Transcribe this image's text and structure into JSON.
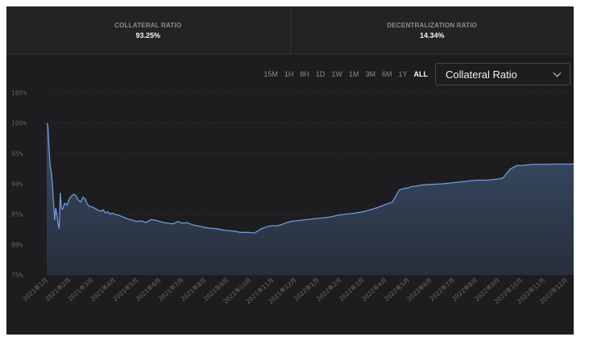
{
  "stats": [
    {
      "label": "COLLATERAL RATIO",
      "value": "93.25%"
    },
    {
      "label": "DECENTRALIZATION RATIO",
      "value": "14.34%"
    }
  ],
  "ranges": [
    "15M",
    "1H",
    "8H",
    "1D",
    "1W",
    "1M",
    "3M",
    "6M",
    "1Y",
    "ALL"
  ],
  "active_range": "ALL",
  "metric_select": {
    "value": "Collateral Ratio",
    "icon": "chevron-down-icon"
  },
  "colors": {
    "line": "#6b9be0",
    "background": "#1d1d1f",
    "area_top": "#3d5270"
  },
  "chart_data": {
    "type": "area",
    "yticks": [
      "75%",
      "80%",
      "85%",
      "90%",
      "95%",
      "100%",
      "105%"
    ],
    "ylim": [
      75,
      105
    ],
    "grid": true,
    "categories": [
      "2021年1月",
      "2021年2月",
      "2021年3月",
      "2021年4月",
      "2021年5月",
      "2021年6月",
      "2021年7月",
      "2021年8月",
      "2021年9月",
      "2021年10月",
      "2021年11月",
      "2021年12月",
      "2022年1月",
      "2022年2月",
      "2022年3月",
      "2022年4月",
      "2022年5月",
      "2022年6月",
      "2022年7月",
      "2022年8月",
      "2022年9月",
      "2022年10月",
      "2022年11月",
      "2022年12月"
    ],
    "x": [
      0,
      0.05,
      0.1,
      0.15,
      0.2,
      0.25,
      0.3,
      0.35,
      0.4,
      0.45,
      0.5,
      0.55,
      0.6,
      0.65,
      0.7,
      0.8,
      0.9,
      1.0,
      1.1,
      1.2,
      1.3,
      1.4,
      1.5,
      1.6,
      1.7,
      1.8,
      1.9,
      2.0,
      2.1,
      2.2,
      2.3,
      2.4,
      2.5,
      2.6,
      2.7,
      2.8,
      2.9,
      3.0,
      3.2,
      3.4,
      3.6,
      3.8,
      4.0,
      4.2,
      4.4,
      4.6,
      4.8,
      5.0,
      5.2,
      5.4,
      5.6,
      5.8,
      6.0,
      6.2,
      6.5,
      6.8,
      7.0,
      7.2,
      7.5,
      7.8,
      8.0,
      8.3,
      8.6,
      8.9,
      9.2,
      9.5,
      9.8,
      10.0,
      10.2,
      10.4,
      10.6,
      10.8,
      11.0,
      11.5,
      12.0,
      12.5,
      13.0,
      13.5,
      14.0,
      14.5,
      15.0,
      15.3,
      15.6,
      15.9,
      16.0,
      16.1,
      16.3,
      16.6,
      17.0,
      17.5,
      18.0,
      18.5,
      19.0,
      19.5,
      20.0,
      20.2,
      20.5,
      20.8,
      21.0,
      21.5,
      22.0,
      22.5,
      23.0,
      23.5
    ],
    "values": [
      100,
      99.6,
      96,
      93,
      92,
      90,
      87,
      84,
      86,
      85,
      83.5,
      82.6,
      88.5,
      86,
      85.8,
      86.8,
      86.5,
      87.5,
      88,
      88.3,
      88,
      87.3,
      87,
      87.8,
      87.5,
      86.6,
      86.3,
      86.2,
      86,
      85.8,
      85.6,
      85.5,
      85.7,
      85.2,
      85.4,
      85,
      85.2,
      85.0,
      84.8,
      84.5,
      84.2,
      84.0,
      83.8,
      83.9,
      83.6,
      84.1,
      84.0,
      83.8,
      83.6,
      83.5,
      83.4,
      83.8,
      83.5,
      83.6,
      83.2,
      83.0,
      82.8,
      82.7,
      82.6,
      82.4,
      82.3,
      82.2,
      82.0,
      82.0,
      81.9,
      82.6,
      83.0,
      83.1,
      83.1,
      83.3,
      83.6,
      83.8,
      83.9,
      84.1,
      84.3,
      84.5,
      84.9,
      85.1,
      85.4,
      85.9,
      86.6,
      87.0,
      89.0,
      89.3,
      89.3,
      89.5,
      89.6,
      89.8,
      89.9,
      90.0,
      90.2,
      90.4,
      90.6,
      90.6,
      90.8,
      91.0,
      92.4,
      93.0,
      93.0,
      93.2,
      93.2,
      93.25,
      93.25,
      93.25
    ]
  }
}
